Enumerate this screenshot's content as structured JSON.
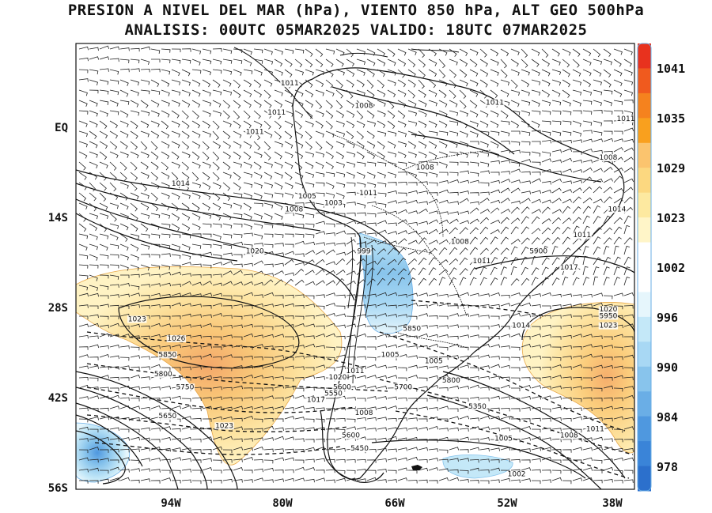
{
  "title_line1": "PRESION A NIVEL DEL MAR (hPa), VIENTO 850 hPa, ALT GEO 500hPa",
  "title_line2": "ANALISIS: 00UTC 05MAR2025 VALIDO: 18UTC 07MAR2025",
  "latitude_labels": [
    "EQ",
    "14S",
    "28S",
    "42S",
    "56S"
  ],
  "longitude_labels": [
    "94W",
    "80W",
    "66W",
    "52W",
    "38W"
  ],
  "colorbar": {
    "labels": [
      "1041",
      "1035",
      "1029",
      "1023",
      "1002",
      "996",
      "990",
      "984",
      "978"
    ],
    "colors_top_to_bottom": [
      "#e8321e",
      "#f05a1e",
      "#f5821e",
      "#f9a01e",
      "#fbc46e",
      "#fcd880",
      "#fde9a0",
      "#fff5c8",
      "#ffffff",
      "#ffffff",
      "#e6f6fc",
      "#c4e8f8",
      "#a8d8f4",
      "#88c4ec",
      "#6aaee6",
      "#4f98df",
      "#3a84d8",
      "#2c70cc"
    ]
  },
  "pressure_labels": [
    {
      "text": "1011",
      "lon": -76.5,
      "lat": 6.5
    },
    {
      "text": "1008",
      "lon": -68,
      "lat": 3
    },
    {
      "text": "1011",
      "lon": -53,
      "lat": 3.5
    },
    {
      "text": "1011",
      "lon": -78,
      "lat": 2
    },
    {
      "text": "1011",
      "lon": -38,
      "lat": 1
    },
    {
      "text": "1011",
      "lon": -80.5,
      "lat": -1
    },
    {
      "text": "1008",
      "lon": -40,
      "lat": -5
    },
    {
      "text": "1008",
      "lon": -61,
      "lat": -6.5
    },
    {
      "text": "1014",
      "lon": -89,
      "lat": -9
    },
    {
      "text": "1005",
      "lon": -74.5,
      "lat": -11
    },
    {
      "text": "1011",
      "lon": -67.5,
      "lat": -10.5
    },
    {
      "text": "1003",
      "lon": -71.5,
      "lat": -12
    },
    {
      "text": "1008",
      "lon": -76,
      "lat": -13
    },
    {
      "text": "1014",
      "lon": -39,
      "lat": -13
    },
    {
      "text": "1011",
      "lon": -43,
      "lat": -17
    },
    {
      "text": "1008",
      "lon": -57,
      "lat": -18
    },
    {
      "text": "999",
      "lon": -68,
      "lat": -19.5
    },
    {
      "text": "5900",
      "lon": -48,
      "lat": -19.5
    },
    {
      "text": "1011",
      "lon": -54.5,
      "lat": -21
    },
    {
      "text": "1017",
      "lon": -44.5,
      "lat": -22
    },
    {
      "text": "1020",
      "lon": -80.5,
      "lat": -19.5
    },
    {
      "text": "1020",
      "lon": -40,
      "lat": -28.5
    },
    {
      "text": "1023",
      "lon": -94,
      "lat": -30
    },
    {
      "text": "5950",
      "lon": -40,
      "lat": -29.5
    },
    {
      "text": "1014",
      "lon": -50,
      "lat": -31
    },
    {
      "text": "1023",
      "lon": -40,
      "lat": -31
    },
    {
      "text": "5850",
      "lon": -62.5,
      "lat": -31.5
    },
    {
      "text": "1026",
      "lon": -89.5,
      "lat": -33
    },
    {
      "text": "5850",
      "lon": -90.5,
      "lat": -35.5
    },
    {
      "text": "1005",
      "lon": -65,
      "lat": -35.5
    },
    {
      "text": "1005",
      "lon": -60,
      "lat": -36.5
    },
    {
      "text": "5800",
      "lon": -91,
      "lat": -38.5
    },
    {
      "text": "1011",
      "lon": -69,
      "lat": -38
    },
    {
      "text": "1020",
      "lon": -71,
      "lat": -39
    },
    {
      "text": "5800",
      "lon": -58,
      "lat": -39.5
    },
    {
      "text": "5750",
      "lon": -88.5,
      "lat": -40.5
    },
    {
      "text": "5600",
      "lon": -70.5,
      "lat": -40.5
    },
    {
      "text": "5700",
      "lon": -63.5,
      "lat": -40.5
    },
    {
      "text": "5550",
      "lon": -71.5,
      "lat": -41.5
    },
    {
      "text": "1017",
      "lon": -73.5,
      "lat": -42.5
    },
    {
      "text": "5350",
      "lon": -55,
      "lat": -43.5
    },
    {
      "text": "1008",
      "lon": -68,
      "lat": -44.5
    },
    {
      "text": "5650",
      "lon": -90.5,
      "lat": -45
    },
    {
      "text": "1023",
      "lon": -84,
      "lat": -46.5
    },
    {
      "text": "1011",
      "lon": -41.5,
      "lat": -47
    },
    {
      "text": "5600",
      "lon": -69.5,
      "lat": -48
    },
    {
      "text": "1008",
      "lon": -44.5,
      "lat": -48
    },
    {
      "text": "1005",
      "lon": -52,
      "lat": -48.5
    },
    {
      "text": "5450",
      "lon": -68.5,
      "lat": -50
    },
    {
      "text": "1002",
      "lon": -50.5,
      "lat": -54
    }
  ]
}
